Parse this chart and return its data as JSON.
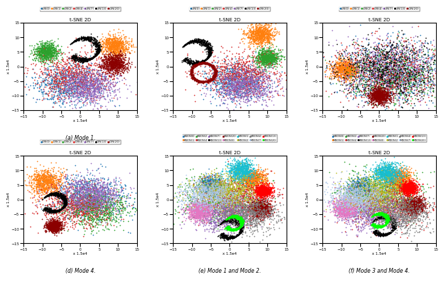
{
  "subplots": [
    {
      "label": "(a) Mode 1.",
      "title": "t-SNE 2D",
      "xlabel": "x 1.5e4",
      "ylabel": "x 1.5e4"
    },
    {
      "label": "(b) Mode 2.",
      "title": "t-SNE 2D",
      "xlabel": "x 1.5e4",
      "ylabel": "x 1.5e4"
    },
    {
      "label": "(c) Mode 3.",
      "title": "t-SNE 2D",
      "xlabel": "x 1.5e4",
      "ylabel": "x 1.5e4"
    },
    {
      "label": "(d) Mode 4.",
      "title": "t-SNE 2D",
      "xlabel": "x 1.5e4",
      "ylabel": "x 1.5e4"
    },
    {
      "label": "(e) Mode 1 and Mode 2.",
      "title": "t-SNE 2D",
      "xlabel": "x 1.5e4",
      "ylabel": "x 1.5e4"
    },
    {
      "label": "(f) Mode 3 and Mode 4.",
      "title": "t-SNE 2D",
      "xlabel": "x 1.5e4",
      "ylabel": "x 1.5e4"
    }
  ],
  "single_mode_legend": [
    "IDN(0)",
    "IDN(1)",
    "IDN(2)",
    "IDN(4)",
    "IDN(7)",
    "IDN(13)",
    "IDN(20)"
  ],
  "multi_mode_legend_e": [
    "M1IDN(0)",
    "M1IDN(1)",
    "M1IDN(2)",
    "M1IDN(4)",
    "M1IDN(7)",
    "M1IDN(13)",
    "M1IDN(20)",
    "M2IDN(0)",
    "M2IDN(1)",
    "M2IDN(2)",
    "M2IDN(4)",
    "M2IDN(7)",
    "M2IDN(13)",
    "M2IDN(20)"
  ],
  "multi_mode_legend_f": [
    "M3IDN(0)",
    "M3IDN(1)",
    "M3IDN(2)",
    "M3IDN(4)",
    "M3IDN(7)",
    "M3IDN(13)",
    "M3IDN(20)",
    "M4IDN(0)",
    "M4IDN(1)",
    "M4IDN(2)",
    "M4IDN(4)",
    "M4IDN(7)",
    "M4IDN(13)",
    "M4IDN(20)"
  ],
  "colors_7": [
    "#1f77b4",
    "#ff7f0e",
    "#2ca02c",
    "#d62728",
    "#9467bd",
    "#000000",
    "#8b0000"
  ],
  "colors_14": [
    "#1f77b4",
    "#ff7f0e",
    "#2ca02c",
    "#d62728",
    "#9467bd",
    "#000000",
    "#8b0000",
    "#e377c2",
    "#17becf",
    "#bcbd22",
    "#7f7f7f",
    "#aec7e8",
    "#ff0000",
    "#00ff00"
  ],
  "xlim": [
    -15,
    15
  ],
  "ylim": [
    -15,
    15
  ],
  "xticks": [
    -15,
    -10,
    -5,
    0,
    5,
    10,
    15
  ],
  "yticks": [
    -15,
    -10,
    -5,
    0,
    5,
    10,
    15
  ],
  "n_points": 800,
  "marker_size": 1.5,
  "background_color": "#ffffff"
}
